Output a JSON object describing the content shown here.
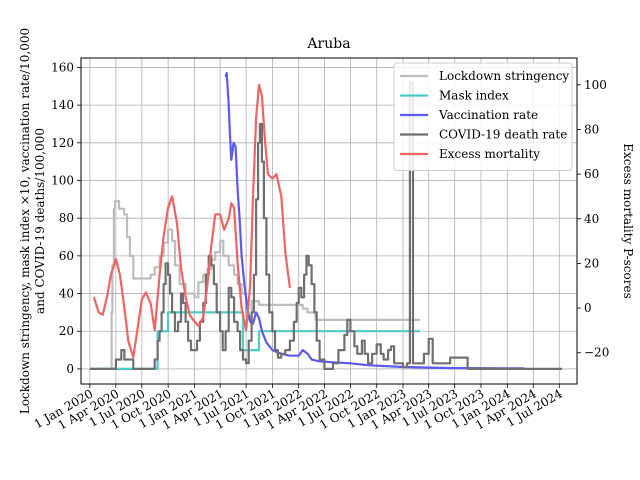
{
  "chart_data": {
    "type": "line",
    "title": "Aruba",
    "ylabel_left_line1": "Lockdown stringency, mask index ×10, vaccination rate/10,000",
    "ylabel_left_line2": "and COVID-19 deaths/100,000",
    "ylabel_right": "Excess mortality P-scores",
    "xlim": [
      "2019-12-01",
      "2024-09-01"
    ],
    "ylim_left": [
      -8,
      165
    ],
    "ylim_right": [
      -34,
      112
    ],
    "x_ticks": [
      {
        "date": "2020-01-01",
        "label": "1 Jan 2020"
      },
      {
        "date": "2020-04-01",
        "label": "1 Apr 2020"
      },
      {
        "date": "2020-07-01",
        "label": "1 Jul 2020"
      },
      {
        "date": "2020-10-01",
        "label": "1 Oct 2020"
      },
      {
        "date": "2021-01-01",
        "label": "1 Jan 2021"
      },
      {
        "date": "2021-04-01",
        "label": "1 Apr 2021"
      },
      {
        "date": "2021-07-01",
        "label": "1 Jul 2021"
      },
      {
        "date": "2021-10-01",
        "label": "1 Oct 2021"
      },
      {
        "date": "2022-01-01",
        "label": "1 Jan 2022"
      },
      {
        "date": "2022-04-01",
        "label": "1 Apr 2022"
      },
      {
        "date": "2022-07-01",
        "label": "1 Jul 2022"
      },
      {
        "date": "2022-10-01",
        "label": "1 Oct 2022"
      },
      {
        "date": "2023-01-01",
        "label": "1 Jan 2023"
      },
      {
        "date": "2023-04-01",
        "label": "1 Apr 2023"
      },
      {
        "date": "2023-07-01",
        "label": "1 Jul 2023"
      },
      {
        "date": "2023-10-01",
        "label": "1 Oct 2023"
      },
      {
        "date": "2024-01-01",
        "label": "1 Jan 2024"
      },
      {
        "date": "2024-04-01",
        "label": "1 Apr 2024"
      },
      {
        "date": "2024-07-01",
        "label": "1 Jul 2024"
      }
    ],
    "y_ticks_left": [
      0,
      20,
      40,
      60,
      80,
      100,
      120,
      140,
      160
    ],
    "y_ticks_right": [
      -20,
      0,
      20,
      40,
      60,
      80,
      100
    ],
    "grid": true,
    "legend_position": "top-right",
    "series": [
      {
        "name": "Lockdown stringency",
        "axis": "left",
        "step": true,
        "color": "#bdbdbd",
        "width": 2.2,
        "points": [
          [
            "2020-01-01",
            0
          ],
          [
            "2020-03-15",
            0
          ],
          [
            "2020-03-17",
            30
          ],
          [
            "2020-03-20",
            55
          ],
          [
            "2020-03-25",
            85
          ],
          [
            "2020-03-29",
            89
          ],
          [
            "2020-04-12",
            85
          ],
          [
            "2020-04-30",
            82
          ],
          [
            "2020-05-10",
            70
          ],
          [
            "2020-05-20",
            60
          ],
          [
            "2020-06-01",
            48
          ],
          [
            "2020-08-01",
            50
          ],
          [
            "2020-08-15",
            54
          ],
          [
            "2020-09-01",
            60
          ],
          [
            "2020-09-15",
            67
          ],
          [
            "2020-10-01",
            74
          ],
          [
            "2020-10-15",
            68
          ],
          [
            "2020-10-25",
            55
          ],
          [
            "2020-11-10",
            45
          ],
          [
            "2020-12-01",
            40
          ],
          [
            "2021-01-01",
            38
          ],
          [
            "2021-01-15",
            46
          ],
          [
            "2021-02-01",
            50
          ],
          [
            "2021-02-15",
            53
          ],
          [
            "2021-03-01",
            58
          ],
          [
            "2021-03-15",
            62
          ],
          [
            "2021-04-01",
            68
          ],
          [
            "2021-04-12",
            60
          ],
          [
            "2021-05-01",
            55
          ],
          [
            "2021-05-20",
            50
          ],
          [
            "2021-06-01",
            45
          ],
          [
            "2021-06-15",
            40
          ],
          [
            "2021-07-01",
            28
          ],
          [
            "2021-07-20",
            36
          ],
          [
            "2021-08-15",
            34
          ],
          [
            "2022-01-01",
            34
          ],
          [
            "2022-01-15",
            32
          ],
          [
            "2022-02-01",
            30
          ],
          [
            "2022-03-01",
            26
          ],
          [
            "2023-03-01",
            26
          ]
        ]
      },
      {
        "name": "Mask index",
        "axis": "left",
        "step": true,
        "color": "#4ecdc4",
        "width": 2.2,
        "points": [
          [
            "2020-01-01",
            0
          ],
          [
            "2020-08-20",
            0
          ],
          [
            "2020-08-25",
            20
          ],
          [
            "2020-10-01",
            30
          ],
          [
            "2021-06-15",
            30
          ],
          [
            "2021-06-20",
            10
          ],
          [
            "2021-08-15",
            20
          ],
          [
            "2023-03-01",
            20
          ]
        ]
      },
      {
        "name": "Vaccination rate",
        "axis": "left",
        "step": false,
        "color": "#5a5af0",
        "width": 2.2,
        "points": [
          [
            "2021-04-20",
            155
          ],
          [
            "2021-04-24",
            157
          ],
          [
            "2021-05-01",
            140
          ],
          [
            "2021-05-05",
            125
          ],
          [
            "2021-05-10",
            111
          ],
          [
            "2021-05-18",
            120
          ],
          [
            "2021-05-25",
            118
          ],
          [
            "2021-06-01",
            95
          ],
          [
            "2021-06-08",
            80
          ],
          [
            "2021-06-15",
            60
          ],
          [
            "2021-06-25",
            45
          ],
          [
            "2021-07-05",
            32
          ],
          [
            "2021-07-15",
            25
          ],
          [
            "2021-07-25",
            24
          ],
          [
            "2021-08-05",
            30
          ],
          [
            "2021-08-15",
            27
          ],
          [
            "2021-08-25",
            20
          ],
          [
            "2021-09-10",
            14
          ],
          [
            "2021-10-01",
            10
          ],
          [
            "2021-11-01",
            8
          ],
          [
            "2021-12-01",
            7
          ],
          [
            "2022-01-01",
            7
          ],
          [
            "2022-01-15",
            10
          ],
          [
            "2022-02-01",
            8
          ],
          [
            "2022-02-15",
            5
          ],
          [
            "2022-03-15",
            4
          ],
          [
            "2022-05-01",
            3.5
          ],
          [
            "2022-07-01",
            3
          ],
          [
            "2022-09-01",
            2
          ],
          [
            "2022-11-01",
            1.5
          ],
          [
            "2023-01-01",
            1
          ],
          [
            "2023-06-01",
            0.5
          ],
          [
            "2024-03-01",
            0.3
          ]
        ]
      },
      {
        "name": "COVID-19 death rate",
        "axis": "left",
        "step": true,
        "color": "#707070",
        "width": 2.2,
        "points": [
          [
            "2020-01-01",
            0
          ],
          [
            "2020-04-01",
            5
          ],
          [
            "2020-04-20",
            10
          ],
          [
            "2020-05-01",
            5
          ],
          [
            "2020-06-01",
            0
          ],
          [
            "2020-08-15",
            5
          ],
          [
            "2020-08-25",
            15
          ],
          [
            "2020-09-01",
            20
          ],
          [
            "2020-09-08",
            30
          ],
          [
            "2020-09-15",
            45
          ],
          [
            "2020-09-22",
            56
          ],
          [
            "2020-10-01",
            50
          ],
          [
            "2020-10-08",
            40
          ],
          [
            "2020-10-15",
            30
          ],
          [
            "2020-10-25",
            20
          ],
          [
            "2020-11-05",
            25
          ],
          [
            "2020-11-15",
            40
          ],
          [
            "2020-11-22",
            35
          ],
          [
            "2020-12-01",
            25
          ],
          [
            "2020-12-10",
            15
          ],
          [
            "2020-12-20",
            10
          ],
          [
            "2021-01-01",
            10
          ],
          [
            "2021-01-10",
            15
          ],
          [
            "2021-01-20",
            25
          ],
          [
            "2021-02-01",
            35
          ],
          [
            "2021-02-10",
            50
          ],
          [
            "2021-02-20",
            60
          ],
          [
            "2021-03-01",
            55
          ],
          [
            "2021-03-10",
            45
          ],
          [
            "2021-03-20",
            30
          ],
          [
            "2021-04-01",
            20
          ],
          [
            "2021-04-10",
            10
          ],
          [
            "2021-04-20",
            20
          ],
          [
            "2021-05-01",
            43
          ],
          [
            "2021-05-10",
            38
          ],
          [
            "2021-05-20",
            25
          ],
          [
            "2021-06-01",
            20
          ],
          [
            "2021-06-10",
            10
          ],
          [
            "2021-06-20",
            5
          ],
          [
            "2021-07-01",
            3
          ],
          [
            "2021-07-10",
            15
          ],
          [
            "2021-07-20",
            30
          ],
          [
            "2021-07-28",
            50
          ],
          [
            "2021-08-05",
            90
          ],
          [
            "2021-08-12",
            120
          ],
          [
            "2021-08-18",
            130
          ],
          [
            "2021-08-25",
            110
          ],
          [
            "2021-09-01",
            80
          ],
          [
            "2021-09-10",
            50
          ],
          [
            "2021-09-20",
            30
          ],
          [
            "2021-10-01",
            20
          ],
          [
            "2021-10-10",
            10
          ],
          [
            "2021-10-20",
            6
          ],
          [
            "2021-11-01",
            8
          ],
          [
            "2021-11-15",
            10
          ],
          [
            "2021-12-01",
            15
          ],
          [
            "2021-12-15",
            25
          ],
          [
            "2021-12-25",
            35
          ],
          [
            "2022-01-01",
            43
          ],
          [
            "2022-01-10",
            38
          ],
          [
            "2022-01-20",
            50
          ],
          [
            "2022-01-28",
            60
          ],
          [
            "2022-02-05",
            55
          ],
          [
            "2022-02-15",
            45
          ],
          [
            "2022-02-25",
            30
          ],
          [
            "2022-03-05",
            15
          ],
          [
            "2022-03-15",
            5
          ],
          [
            "2022-04-01",
            0
          ],
          [
            "2022-05-01",
            3
          ],
          [
            "2022-05-20",
            10
          ],
          [
            "2022-06-10",
            18
          ],
          [
            "2022-06-20",
            26
          ],
          [
            "2022-07-01",
            20
          ],
          [
            "2022-07-15",
            12
          ],
          [
            "2022-07-25",
            8
          ],
          [
            "2022-08-10",
            15
          ],
          [
            "2022-08-20",
            8
          ],
          [
            "2022-09-01",
            3
          ],
          [
            "2022-09-15",
            8
          ],
          [
            "2022-10-01",
            13
          ],
          [
            "2022-10-15",
            8
          ],
          [
            "2022-10-25",
            5
          ],
          [
            "2022-11-10",
            10
          ],
          [
            "2022-11-20",
            12
          ],
          [
            "2022-12-01",
            3
          ],
          [
            "2023-01-01",
            1
          ],
          [
            "2023-01-15",
            3
          ],
          [
            "2023-01-25",
            152
          ],
          [
            "2023-02-05",
            3
          ],
          [
            "2023-03-01",
            3
          ],
          [
            "2023-03-15",
            8
          ],
          [
            "2023-04-01",
            16
          ],
          [
            "2023-04-15",
            3
          ],
          [
            "2023-06-01",
            3
          ],
          [
            "2023-06-15",
            6
          ],
          [
            "2023-08-01",
            6
          ],
          [
            "2023-08-15",
            0
          ],
          [
            "2024-07-10",
            0
          ]
        ]
      },
      {
        "name": "Excess mortality",
        "axis": "right",
        "step": false,
        "color": "#f06464",
        "width": 2.2,
        "points": [
          [
            "2020-01-15",
            5
          ],
          [
            "2020-02-01",
            -2
          ],
          [
            "2020-02-15",
            -3
          ],
          [
            "2020-03-01",
            5
          ],
          [
            "2020-03-15",
            15
          ],
          [
            "2020-04-01",
            22
          ],
          [
            "2020-04-15",
            15
          ],
          [
            "2020-05-01",
            0
          ],
          [
            "2020-05-15",
            -15
          ],
          [
            "2020-06-01",
            -22
          ],
          [
            "2020-06-15",
            -10
          ],
          [
            "2020-07-01",
            4
          ],
          [
            "2020-07-15",
            7
          ],
          [
            "2020-08-01",
            2
          ],
          [
            "2020-08-15",
            -10
          ],
          [
            "2020-09-01",
            15
          ],
          [
            "2020-09-15",
            32
          ],
          [
            "2020-10-01",
            45
          ],
          [
            "2020-10-15",
            50
          ],
          [
            "2020-11-01",
            38
          ],
          [
            "2020-11-15",
            18
          ],
          [
            "2020-12-01",
            5
          ],
          [
            "2020-12-15",
            -3
          ],
          [
            "2021-01-01",
            -6
          ],
          [
            "2021-01-15",
            -8
          ],
          [
            "2021-02-01",
            -4
          ],
          [
            "2021-02-15",
            10
          ],
          [
            "2021-03-01",
            28
          ],
          [
            "2021-03-15",
            42
          ],
          [
            "2021-04-01",
            42
          ],
          [
            "2021-04-15",
            35
          ],
          [
            "2021-05-01",
            40
          ],
          [
            "2021-05-10",
            47
          ],
          [
            "2021-05-20",
            45
          ],
          [
            "2021-06-01",
            20
          ],
          [
            "2021-06-15",
            0
          ],
          [
            "2021-07-01",
            -10
          ],
          [
            "2021-07-15",
            10
          ],
          [
            "2021-07-25",
            50
          ],
          [
            "2021-08-05",
            85
          ],
          [
            "2021-08-15",
            100
          ],
          [
            "2021-08-25",
            95
          ],
          [
            "2021-09-05",
            75
          ],
          [
            "2021-09-15",
            60
          ],
          [
            "2021-10-01",
            58
          ],
          [
            "2021-10-15",
            60
          ],
          [
            "2021-11-01",
            50
          ],
          [
            "2021-11-15",
            25
          ],
          [
            "2021-12-01",
            9
          ]
        ]
      }
    ]
  }
}
